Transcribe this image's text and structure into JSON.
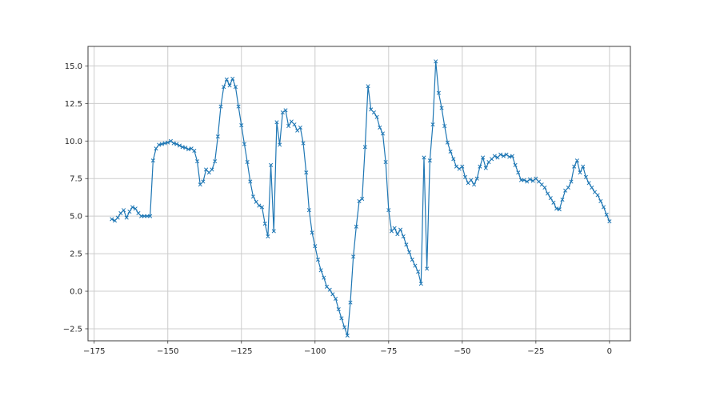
{
  "figure": {
    "background": "#ffffff"
  },
  "chart_data": {
    "type": "line",
    "title": "",
    "xlabel": "",
    "ylabel": "",
    "legend": "none",
    "grid": true,
    "marker": "x",
    "line_color": "#1f77b4",
    "grid_color": "#cccccc",
    "spine_color": "#3c3c3c",
    "tick_color": "#3c3c3c",
    "label_color": "#262626",
    "xlim": [
      -177.1,
      7.1
    ],
    "ylim": [
      -3.3,
      16.3
    ],
    "xticks": {
      "values": [
        -175,
        -150,
        -125,
        -100,
        -75,
        -50,
        -25,
        0
      ],
      "labels": [
        "−175",
        "−150",
        "−125",
        "−100",
        "−75",
        "−50",
        "−25",
        "0"
      ]
    },
    "yticks": {
      "values": [
        -2.5,
        0.0,
        2.5,
        5.0,
        7.5,
        10.0,
        12.5,
        15.0
      ],
      "labels": [
        "−2.5",
        "0.0",
        "2.5",
        "5.0",
        "7.5",
        "10.0",
        "12.5",
        "15.0"
      ]
    },
    "x": [
      -169,
      -168,
      -167,
      -166,
      -165,
      -164,
      -163,
      -162,
      -161,
      -160,
      -159,
      -158,
      -157,
      -156,
      -155,
      -154,
      -153,
      -152,
      -151,
      -150,
      -149,
      -148,
      -147,
      -146,
      -145,
      -144,
      -143,
      -142,
      -141,
      -140,
      -139,
      -138,
      -137,
      -136,
      -135,
      -134,
      -133,
      -132,
      -131,
      -130,
      -129,
      -128,
      -127,
      -126,
      -125,
      -124,
      -123,
      -122,
      -121,
      -120,
      -119,
      -118,
      -117,
      -116,
      -115,
      -114,
      -113,
      -112,
      -111,
      -110,
      -109,
      -108,
      -107,
      -106,
      -105,
      -104,
      -103,
      -102,
      -101,
      -100,
      -99,
      -98,
      -97,
      -96,
      -95,
      -94,
      -93,
      -92,
      -91,
      -90,
      -89,
      -88,
      -87,
      -86,
      -85,
      -84,
      -83,
      -82,
      -81,
      -80,
      -79,
      -78,
      -77,
      -76,
      -75,
      -74,
      -73,
      -72,
      -71,
      -70,
      -69,
      -68,
      -67,
      -66,
      -65,
      -64,
      -63,
      -62,
      -61,
      -60,
      -59,
      -58,
      -57,
      -56,
      -55,
      -54,
      -53,
      -52,
      -51,
      -50,
      -49,
      -48,
      -47,
      -46,
      -45,
      -44,
      -43,
      -42,
      -41,
      -40,
      -39,
      -38,
      -37,
      -36,
      -35,
      -34,
      -33,
      -32,
      -31,
      -30,
      -29,
      -28,
      -27,
      -26,
      -25,
      -24,
      -23,
      -22,
      -21,
      -20,
      -19,
      -18,
      -17,
      -16,
      -15,
      -14,
      -13,
      -12,
      -11,
      -10,
      -9,
      -8,
      -7,
      -6,
      -5,
      -4,
      -3,
      -2,
      -1,
      0
    ],
    "y": [
      4.8,
      4.7,
      4.9,
      5.2,
      5.4,
      4.9,
      5.3,
      5.6,
      5.5,
      5.2,
      5.0,
      5.0,
      5.0,
      5.0,
      8.7,
      9.5,
      9.75,
      9.8,
      9.85,
      9.9,
      10.0,
      9.85,
      9.8,
      9.7,
      9.6,
      9.55,
      9.45,
      9.5,
      9.35,
      8.65,
      7.1,
      7.3,
      8.1,
      7.9,
      8.1,
      8.65,
      10.3,
      12.3,
      13.6,
      14.1,
      13.7,
      14.15,
      13.6,
      12.3,
      11.05,
      9.8,
      8.6,
      7.3,
      6.3,
      5.95,
      5.7,
      5.6,
      4.5,
      3.65,
      8.4,
      4.0,
      11.25,
      9.75,
      11.9,
      12.05,
      11.0,
      11.3,
      11.1,
      10.7,
      10.9,
      9.85,
      7.9,
      5.4,
      3.9,
      3.0,
      2.1,
      1.4,
      0.9,
      0.3,
      0.1,
      -0.2,
      -0.5,
      -1.2,
      -1.8,
      -2.4,
      -2.95,
      -0.75,
      2.3,
      4.3,
      6.0,
      6.15,
      9.6,
      13.65,
      12.1,
      11.9,
      11.6,
      10.9,
      10.5,
      8.6,
      5.4,
      4.0,
      4.2,
      3.8,
      4.1,
      3.65,
      3.1,
      2.6,
      2.1,
      1.7,
      1.3,
      0.5,
      8.9,
      1.5,
      8.7,
      11.1,
      15.3,
      13.2,
      12.2,
      11.0,
      9.9,
      9.3,
      8.8,
      8.3,
      8.15,
      8.3,
      7.6,
      7.2,
      7.4,
      7.1,
      7.5,
      8.3,
      8.9,
      8.2,
      8.6,
      8.8,
      9.0,
      8.9,
      9.1,
      9.0,
      9.1,
      8.95,
      9.0,
      8.4,
      7.9,
      7.4,
      7.4,
      7.3,
      7.45,
      7.35,
      7.5,
      7.3,
      7.1,
      6.9,
      6.5,
      6.2,
      5.9,
      5.5,
      5.45,
      6.1,
      6.7,
      6.9,
      7.3,
      8.3,
      8.7,
      7.9,
      8.3,
      7.6,
      7.2,
      6.9,
      6.6,
      6.4,
      6.0,
      5.6,
      5.1,
      4.65
    ]
  }
}
